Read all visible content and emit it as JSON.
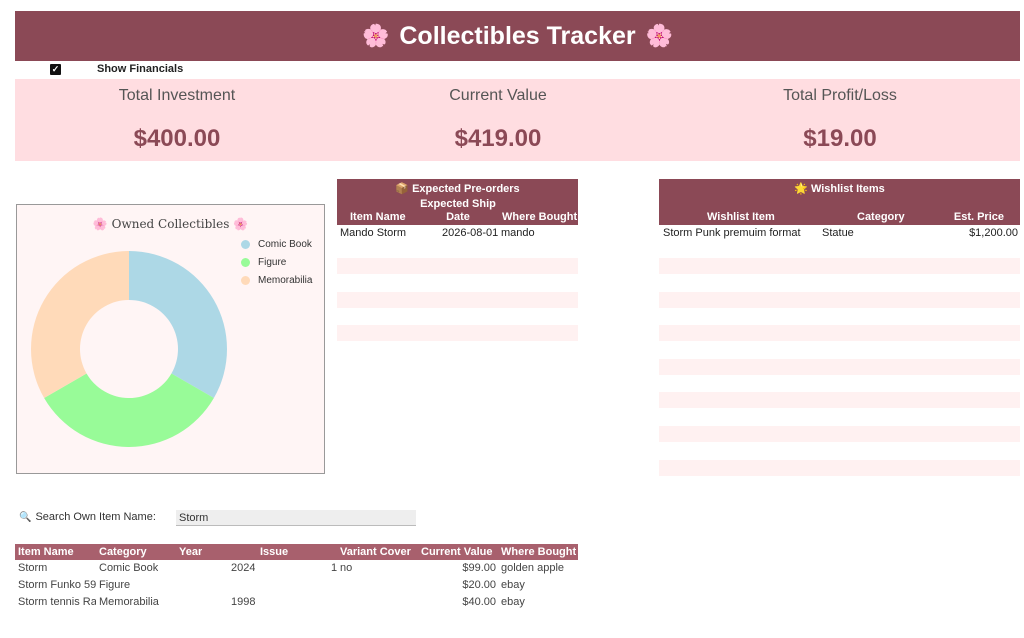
{
  "header": {
    "title": "Collectibles Tracker",
    "flower_icon": "🌸"
  },
  "toggle": {
    "label": "Show Financials",
    "checked": true
  },
  "summary": {
    "investment_label": "Total Investment",
    "investment_value": "$400.00",
    "current_label": "Current Value",
    "current_value": "$419.00",
    "profit_label": "Total Profit/Loss",
    "profit_value": "$19.00"
  },
  "chart_data": {
    "type": "pie",
    "donut": true,
    "title": "Owned Collectibles",
    "title_icon": "🌸",
    "legend_position": "top-right",
    "categories": [
      "Comic Book",
      "Figure",
      "Memorabilia"
    ],
    "values": [
      1,
      1,
      1
    ],
    "colors": [
      "#add8e6",
      "#98fb98",
      "#ffdab9"
    ]
  },
  "preorders": {
    "title": "Expected Pre-orders",
    "title_icon": "📦",
    "col_name": "Item Name",
    "col_ship_1": "Expected Ship",
    "col_ship_2": "Date",
    "col_where": "Where Bought",
    "rows": [
      {
        "name": "Mando Storm",
        "date": "2026-08-01",
        "where": "mando"
      }
    ]
  },
  "wishlist": {
    "title": "Wishlist Items",
    "title_icon": "🌟",
    "col_item": "Wishlist Item",
    "col_category": "Category",
    "col_price": "Est. Price",
    "rows": [
      {
        "item": "Storm Punk premuim format",
        "category": "Statue",
        "price": "$1,200.00"
      }
    ]
  },
  "search": {
    "icon": "🔍",
    "label": "Search Own Item Name:",
    "value": "Storm"
  },
  "owned": {
    "columns": [
      "Item Name",
      "Category",
      "Year",
      "Issue",
      "Variant Cover",
      "Current Value",
      "Where Bought"
    ],
    "rows": [
      {
        "name": "Storm",
        "category": "Comic Book",
        "year": "2024",
        "issue": "1",
        "variant": "no",
        "value": "$99.00",
        "where": "golden apple"
      },
      {
        "name": "Storm Funko 59",
        "category": "Figure",
        "year": "",
        "issue": "",
        "variant": "",
        "value": "$20.00",
        "where": "ebay"
      },
      {
        "name": "Storm tennis Ra",
        "category": "Memorabilia",
        "year": "1998",
        "issue": "",
        "variant": "",
        "value": "$40.00",
        "where": "ebay"
      }
    ]
  }
}
